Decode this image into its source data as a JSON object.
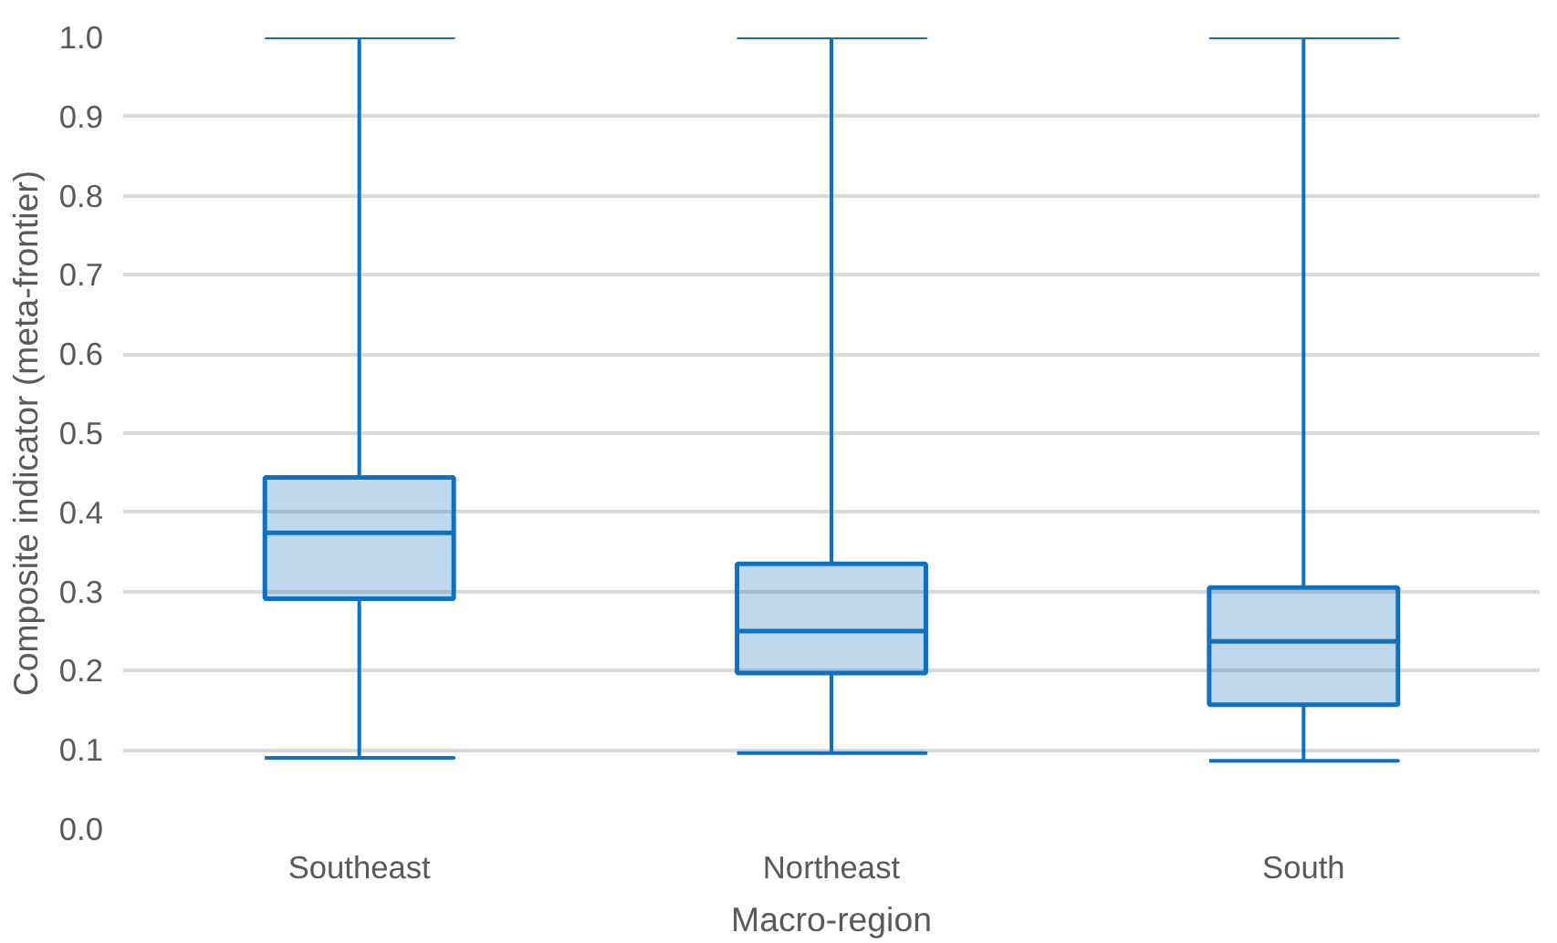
{
  "chart_data": {
    "type": "box",
    "xlabel": "Macro-region",
    "ylabel": "Composite indicator (meta-frontier)",
    "categories": [
      "Southeast",
      "Northeast",
      "South"
    ],
    "series": [
      {
        "color": "#1070c0",
        "boxes": [
          {
            "low": 0.09,
            "q1": 0.291,
            "median": 0.374,
            "q3": 0.444,
            "high": 1.0
          },
          {
            "low": 0.096,
            "q1": 0.197,
            "median": 0.25,
            "q3": 0.335,
            "high": 1.0
          },
          {
            "low": 0.086,
            "q1": 0.157,
            "median": 0.237,
            "q3": 0.305,
            "high": 1.0
          }
        ]
      }
    ],
    "ylim": [
      0,
      1.0
    ],
    "yticks": [
      {
        "value": 0,
        "label": "0.0"
      },
      0.1,
      0.2,
      0.3,
      0.4,
      0.5,
      0.6,
      0.7,
      0.8,
      0.9,
      {
        "value": 1.0,
        "label": "1.0"
      }
    ],
    "grid": "y"
  }
}
